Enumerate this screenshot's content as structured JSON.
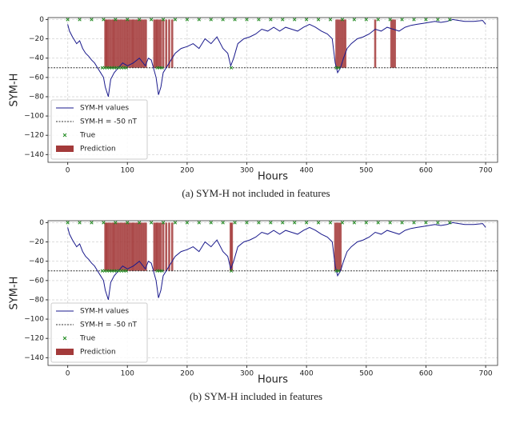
{
  "chart_data": [
    {
      "type": "line",
      "caption": "(a) SYM-H not included in features",
      "xlabel": "Hours",
      "ylabel": "SYM-H",
      "xlim": [
        -33,
        720
      ],
      "xticks": [
        0,
        100,
        200,
        300,
        400,
        500,
        600,
        700
      ],
      "ylim": [
        -148,
        2
      ],
      "yticks": [
        0,
        {
          "value": -20,
          "label": "−20"
        },
        {
          "value": -40,
          "label": "−40"
        },
        {
          "value": -60,
          "label": "−60"
        },
        {
          "value": -80,
          "label": "−80"
        },
        {
          "value": -100,
          "label": "−100"
        },
        {
          "value": -120,
          "label": "−120"
        },
        {
          "value": -140,
          "label": "−140"
        }
      ],
      "grid": true,
      "legend": "lower left",
      "series": [
        {
          "name": "SYM-H values",
          "type": "line",
          "color": "#1a1a8c",
          "x": [
            0,
            3,
            8,
            15,
            20,
            25,
            30,
            35,
            40,
            45,
            50,
            55,
            60,
            63,
            68,
            72,
            78,
            85,
            92,
            100,
            110,
            120,
            130,
            135,
            140,
            148,
            152,
            156,
            160,
            165,
            170,
            175,
            180,
            190,
            200,
            210,
            220,
            230,
            240,
            250,
            260,
            268,
            273,
            278,
            285,
            295,
            305,
            315,
            325,
            335,
            345,
            355,
            365,
            375,
            385,
            395,
            405,
            415,
            425,
            435,
            443,
            448,
            452,
            457,
            462,
            468,
            475,
            485,
            495,
            505,
            515,
            525,
            535,
            545,
            555,
            565,
            575,
            585,
            595,
            605,
            615,
            625,
            635,
            645,
            655,
            665,
            680,
            695,
            700
          ],
          "values": [
            -5,
            -12,
            -18,
            -25,
            -22,
            -30,
            -35,
            -38,
            -42,
            -45,
            -50,
            -55,
            -60,
            -70,
            -80,
            -62,
            -55,
            -50,
            -45,
            -48,
            -45,
            -40,
            -48,
            -40,
            -42,
            -60,
            -78,
            -70,
            -55,
            -50,
            -45,
            -40,
            -35,
            -30,
            -28,
            -25,
            -30,
            -20,
            -25,
            -18,
            -30,
            -35,
            -48,
            -40,
            -25,
            -20,
            -18,
            -15,
            -10,
            -12,
            -8,
            -12,
            -8,
            -10,
            -12,
            -8,
            -5,
            -8,
            -12,
            -15,
            -20,
            -45,
            -55,
            -50,
            -40,
            -30,
            -25,
            -20,
            -18,
            -15,
            -10,
            -12,
            -8,
            -10,
            -12,
            -8,
            -6,
            -5,
            -4,
            -3,
            -2,
            -3,
            -2,
            0,
            -1,
            -2,
            -2,
            -1,
            -5
          ]
        },
        {
          "name": "SYM-H = -50 nT",
          "type": "hline",
          "color": "#333333",
          "value": -50
        },
        {
          "name": "True",
          "type": "scatter",
          "color": "#1f8a1f",
          "x": [
            0,
            20,
            40,
            60,
            80,
            100,
            120,
            140,
            160,
            180,
            200,
            220,
            240,
            260,
            280,
            300,
            320,
            340,
            360,
            380,
            400,
            420,
            440,
            460,
            480,
            500,
            520,
            540,
            560,
            580,
            600,
            620,
            640,
            58,
            62,
            66,
            70,
            74,
            78,
            82,
            86,
            90,
            94,
            98,
            150,
            154,
            158,
            274,
            450,
            454
          ],
          "values": [
            0,
            0,
            0,
            0,
            0,
            0,
            0,
            0,
            0,
            0,
            0,
            0,
            0,
            0,
            0,
            0,
            0,
            0,
            0,
            0,
            0,
            0,
            0,
            0,
            0,
            0,
            0,
            0,
            0,
            0,
            0,
            0,
            0,
            -50,
            -50,
            -50,
            -50,
            -50,
            -50,
            -50,
            -50,
            -50,
            -50,
            -50,
            -50,
            -50,
            -50,
            -50,
            -50,
            -50
          ]
        },
        {
          "name": "Prediction",
          "type": "bar",
          "color": "#a33a3a",
          "x": [
            63,
            65,
            67,
            70,
            73,
            76,
            78,
            81,
            84,
            87,
            90,
            93,
            96,
            99,
            102,
            105,
            108,
            110,
            113,
            116,
            119,
            122,
            125,
            128,
            131,
            145,
            148,
            150,
            153,
            156,
            160,
            165,
            170,
            175,
            450,
            453,
            456,
            459,
            462,
            465,
            515,
            542,
            545,
            548
          ],
          "values": [
            -50,
            -50,
            -50,
            -50,
            -50,
            -50,
            -50,
            -50,
            -50,
            -50,
            -50,
            -50,
            -50,
            -50,
            -50,
            -50,
            -50,
            -50,
            -50,
            -50,
            -50,
            -50,
            -50,
            -50,
            -50,
            -50,
            -50,
            -50,
            -50,
            -50,
            -50,
            -50,
            -50,
            -50,
            -50,
            -50,
            -50,
            -50,
            -50,
            -50,
            -50,
            -50,
            -50,
            -50
          ]
        }
      ]
    },
    {
      "type": "line",
      "caption": "(b) SYM-H included in features",
      "xlabel": "Hours",
      "ylabel": "SYM-H",
      "xlim": [
        -33,
        720
      ],
      "xticks": [
        0,
        100,
        200,
        300,
        400,
        500,
        600,
        700
      ],
      "ylim": [
        -148,
        2
      ],
      "yticks": [
        0,
        {
          "value": -20,
          "label": "−20"
        },
        {
          "value": -40,
          "label": "−40"
        },
        {
          "value": -60,
          "label": "−60"
        },
        {
          "value": -80,
          "label": "−80"
        },
        {
          "value": -100,
          "label": "−100"
        },
        {
          "value": -120,
          "label": "−120"
        },
        {
          "value": -140,
          "label": "−140"
        }
      ],
      "grid": true,
      "legend": "lower left",
      "series": [
        {
          "name": "SYM-H values",
          "type": "line",
          "color": "#1a1a8c",
          "x": [
            0,
            3,
            8,
            15,
            20,
            25,
            30,
            35,
            40,
            45,
            50,
            55,
            60,
            63,
            68,
            72,
            78,
            85,
            92,
            100,
            110,
            120,
            130,
            135,
            140,
            148,
            152,
            156,
            160,
            165,
            170,
            175,
            180,
            190,
            200,
            210,
            220,
            230,
            240,
            250,
            260,
            268,
            273,
            278,
            285,
            295,
            305,
            315,
            325,
            335,
            345,
            355,
            365,
            375,
            385,
            395,
            405,
            415,
            425,
            435,
            443,
            448,
            452,
            457,
            462,
            468,
            475,
            485,
            495,
            505,
            515,
            525,
            535,
            545,
            555,
            565,
            575,
            585,
            595,
            605,
            615,
            625,
            635,
            645,
            655,
            665,
            680,
            695,
            700
          ],
          "values": [
            -5,
            -12,
            -18,
            -25,
            -22,
            -30,
            -35,
            -38,
            -42,
            -45,
            -50,
            -55,
            -60,
            -70,
            -80,
            -62,
            -55,
            -50,
            -45,
            -48,
            -45,
            -40,
            -48,
            -40,
            -42,
            -60,
            -78,
            -70,
            -55,
            -50,
            -45,
            -40,
            -35,
            -30,
            -28,
            -25,
            -30,
            -20,
            -25,
            -18,
            -30,
            -35,
            -48,
            -40,
            -25,
            -20,
            -18,
            -15,
            -10,
            -12,
            -8,
            -12,
            -8,
            -10,
            -12,
            -8,
            -5,
            -8,
            -12,
            -15,
            -20,
            -45,
            -55,
            -50,
            -40,
            -30,
            -25,
            -20,
            -18,
            -15,
            -10,
            -12,
            -8,
            -10,
            -12,
            -8,
            -6,
            -5,
            -4,
            -3,
            -2,
            -3,
            -2,
            0,
            -1,
            -2,
            -2,
            -1,
            -5
          ]
        },
        {
          "name": "SYM-H = -50 nT",
          "type": "hline",
          "color": "#333333",
          "value": -50
        },
        {
          "name": "True",
          "type": "scatter",
          "color": "#1f8a1f",
          "x": [
            0,
            20,
            40,
            60,
            80,
            100,
            120,
            140,
            160,
            180,
            200,
            220,
            240,
            260,
            280,
            300,
            320,
            340,
            360,
            380,
            400,
            420,
            440,
            460,
            480,
            500,
            520,
            540,
            560,
            580,
            600,
            620,
            640,
            58,
            62,
            66,
            70,
            74,
            78,
            82,
            86,
            90,
            94,
            98,
            150,
            154,
            158,
            274,
            450,
            454
          ],
          "values": [
            0,
            0,
            0,
            0,
            0,
            0,
            0,
            0,
            0,
            0,
            0,
            0,
            0,
            0,
            0,
            0,
            0,
            0,
            0,
            0,
            0,
            0,
            0,
            0,
            0,
            0,
            0,
            0,
            0,
            0,
            0,
            0,
            0,
            -50,
            -50,
            -50,
            -50,
            -50,
            -50,
            -50,
            -50,
            -50,
            -50,
            -50,
            -50,
            -50,
            -50,
            -50,
            -50,
            -50
          ]
        },
        {
          "name": "Prediction",
          "type": "bar",
          "color": "#a33a3a",
          "x": [
            63,
            65,
            67,
            70,
            73,
            76,
            78,
            81,
            84,
            87,
            90,
            93,
            96,
            99,
            102,
            105,
            108,
            110,
            113,
            116,
            119,
            122,
            125,
            128,
            131,
            145,
            148,
            150,
            153,
            156,
            160,
            165,
            170,
            175,
            273,
            275,
            448,
            451,
            454,
            457
          ],
          "values": [
            -50,
            -50,
            -50,
            -50,
            -50,
            -50,
            -50,
            -50,
            -50,
            -50,
            -50,
            -50,
            -50,
            -50,
            -50,
            -50,
            -50,
            -50,
            -50,
            -50,
            -50,
            -50,
            -50,
            -50,
            -50,
            -50,
            -50,
            -50,
            -50,
            -50,
            -50,
            -50,
            -50,
            -50,
            -50,
            -50,
            -50,
            -50,
            -50,
            -50
          ]
        }
      ]
    }
  ]
}
